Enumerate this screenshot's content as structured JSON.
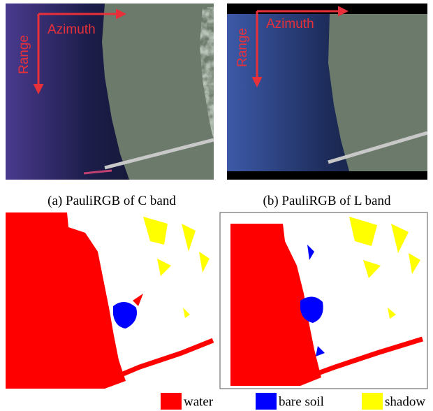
{
  "panels": [
    {
      "caption": "(a) PauliRGB of C band",
      "range_label": "Range",
      "azimuth_label": "Azimuth"
    },
    {
      "caption": "(b) PauliRGB of L band",
      "range_label": "Range",
      "azimuth_label": "Azimuth"
    }
  ],
  "legend": [
    {
      "label": "water",
      "color": "#ff0000"
    },
    {
      "label": "bare soil",
      "color": "#0000ff"
    },
    {
      "label": "shadow",
      "color": "#ffff00"
    }
  ]
}
